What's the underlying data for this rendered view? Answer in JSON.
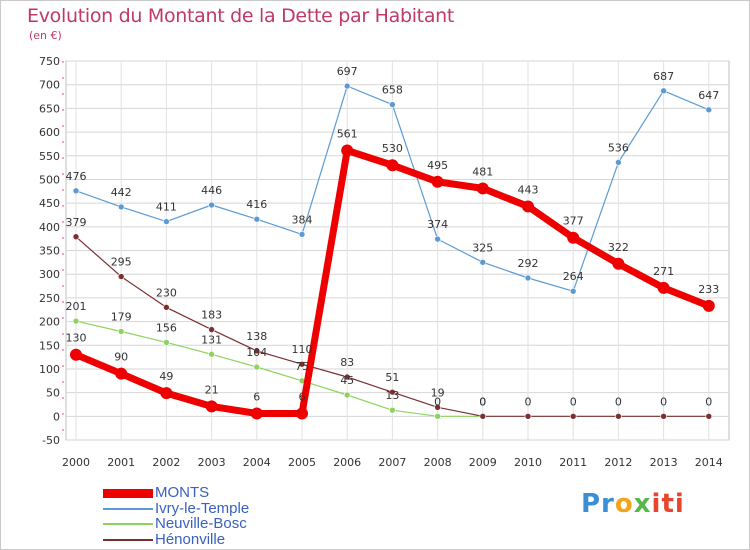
{
  "chart_data": {
    "type": "line",
    "title": "Evolution du Montant de la Dette par Habitant",
    "subtitle": "(en €)",
    "x": [
      "2000",
      "2001",
      "2002",
      "2003",
      "2004",
      "2005",
      "2006",
      "2007",
      "2008",
      "2009",
      "2010",
      "2011",
      "2012",
      "2013",
      "2014"
    ],
    "ylim": [
      -50,
      750
    ],
    "yticks": [
      -50,
      0,
      50,
      100,
      150,
      200,
      250,
      300,
      350,
      400,
      450,
      500,
      550,
      600,
      650,
      700,
      750
    ],
    "grid": true,
    "legend_position": "bottom-left",
    "series": [
      {
        "name": "MONTS",
        "color": "#ee0000",
        "values": [
          130,
          90,
          49,
          21,
          6,
          6,
          561,
          530,
          495,
          481,
          443,
          377,
          322,
          271,
          233
        ]
      },
      {
        "name": "Ivry-le-Temple",
        "color": "#5b9bd5",
        "values": [
          476,
          442,
          411,
          446,
          416,
          384,
          697,
          658,
          374,
          325,
          292,
          264,
          536,
          687,
          647
        ]
      },
      {
        "name": "Neuville-Bosc",
        "color": "#8dd35f",
        "values": [
          201,
          179,
          156,
          131,
          104,
          75,
          45,
          13,
          0,
          0,
          null,
          null,
          null,
          null,
          null
        ]
      },
      {
        "name": "Hénonville",
        "color": "#7b2f2f",
        "values": [
          379,
          295,
          230,
          183,
          138,
          110,
          83,
          51,
          19,
          0,
          0,
          0,
          0,
          0,
          0
        ]
      }
    ]
  },
  "branding": {
    "part1": "Pr",
    "part2": "o",
    "part3": "x",
    "part4": "iti"
  }
}
